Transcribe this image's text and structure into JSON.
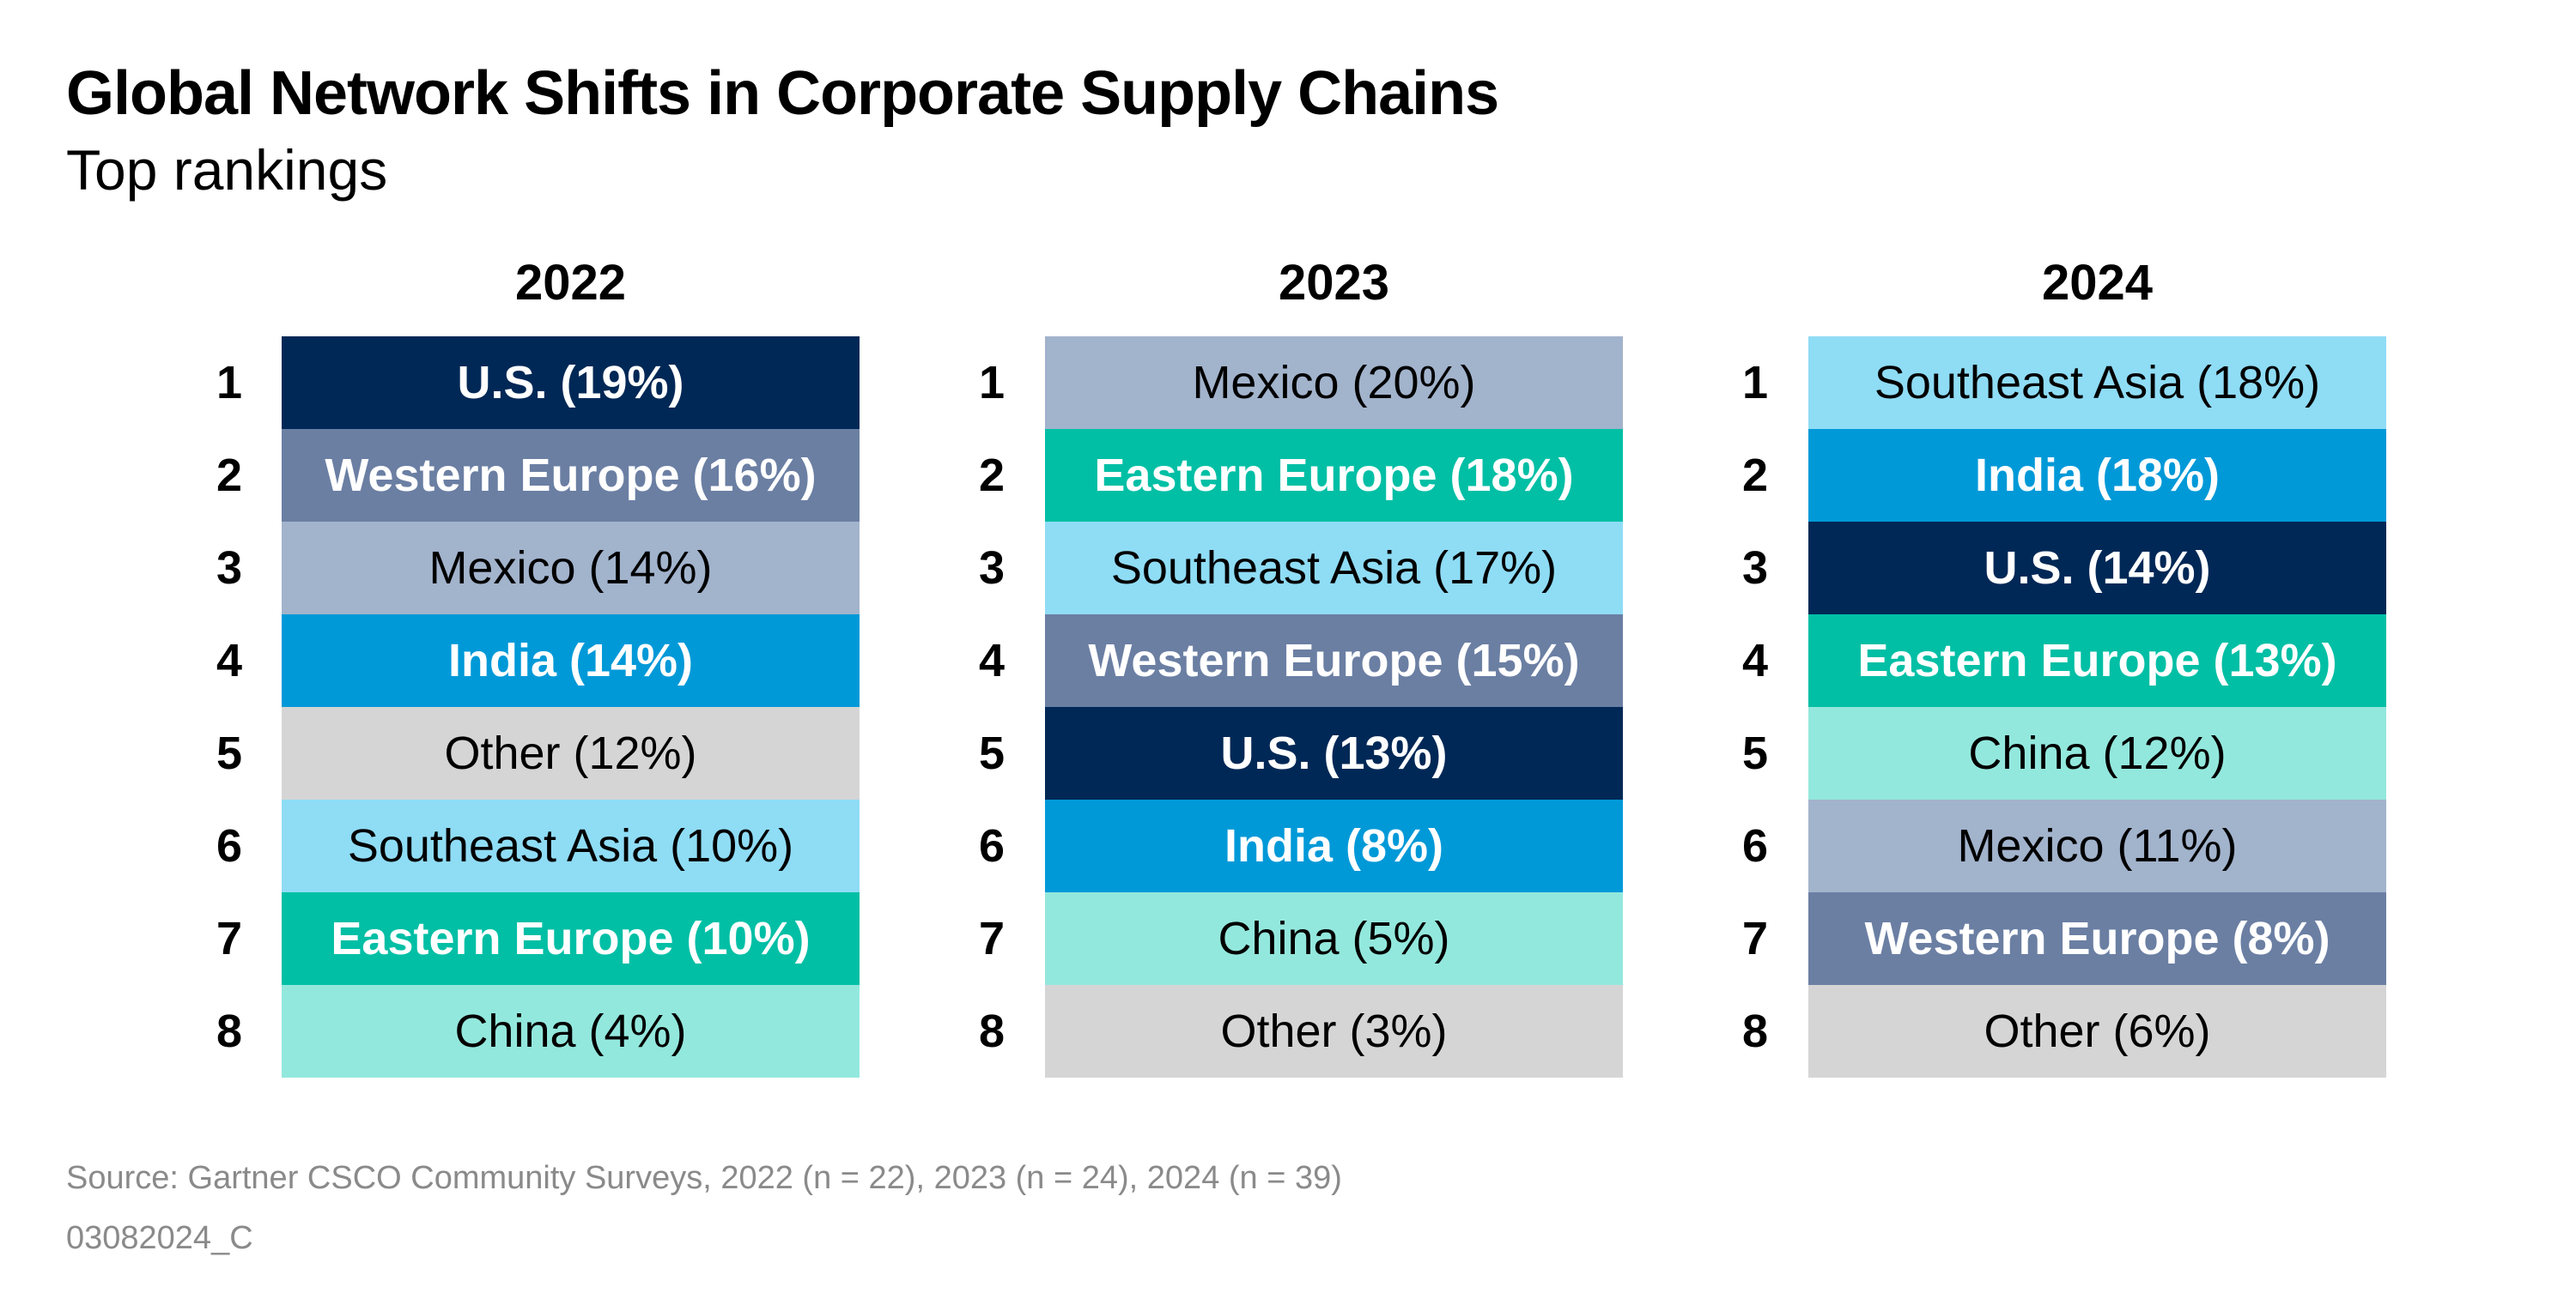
{
  "header": {
    "title": "Global Network Shifts in Corporate Supply Chains",
    "subtitle": "Top rankings"
  },
  "columns": [
    {
      "year": "2022",
      "items": [
        {
          "rank": 1,
          "label": "U.S. (19%)",
          "color": "#002856"
        },
        {
          "rank": 2,
          "label": "Western Europe (16%)",
          "color": "#6b7fa3"
        },
        {
          "rank": 3,
          "label": "Mexico (14%)",
          "color": "#a2b3cc"
        },
        {
          "rank": 4,
          "label": "India (14%)",
          "color": "#0099d8"
        },
        {
          "rank": 5,
          "label": "Other (12%)",
          "color": "#d5d5d5"
        },
        {
          "rank": 6,
          "label": "Southeast Asia (10%)",
          "color": "#8fdcf5"
        },
        {
          "rank": 7,
          "label": "Eastern Europe (10%)",
          "color": "#00bfa5"
        },
        {
          "rank": 8,
          "label": "China (4%)",
          "color": "#93e8dd"
        }
      ]
    },
    {
      "year": "2023",
      "items": [
        {
          "rank": 1,
          "label": "Mexico (20%)",
          "color": "#a2b3cc"
        },
        {
          "rank": 2,
          "label": "Eastern Europe (18%)",
          "color": "#00bfa5"
        },
        {
          "rank": 3,
          "label": "Southeast Asia (17%)",
          "color": "#8fdcf5"
        },
        {
          "rank": 4,
          "label": "Western Europe (15%)",
          "color": "#6b7fa3"
        },
        {
          "rank": 5,
          "label": "U.S. (13%)",
          "color": "#002856"
        },
        {
          "rank": 6,
          "label": "India (8%)",
          "color": "#0099d8"
        },
        {
          "rank": 7,
          "label": "China (5%)",
          "color": "#93e8dd"
        },
        {
          "rank": 8,
          "label": "Other (3%)",
          "color": "#d5d5d5"
        }
      ]
    },
    {
      "year": "2024",
      "items": [
        {
          "rank": 1,
          "label": "Southeast Asia (18%)",
          "color": "#8fdcf5"
        },
        {
          "rank": 2,
          "label": "India (18%)",
          "color": "#0099d8"
        },
        {
          "rank": 3,
          "label": "U.S. (14%)",
          "color": "#002856"
        },
        {
          "rank": 4,
          "label": "Eastern Europe (13%)",
          "color": "#00bfa5"
        },
        {
          "rank": 5,
          "label": "China (12%)",
          "color": "#93e8dd"
        },
        {
          "rank": 6,
          "label": "Mexico (11%)",
          "color": "#a2b3cc"
        },
        {
          "rank": 7,
          "label": "Western Europe (8%)",
          "color": "#6b7fa3"
        },
        {
          "rank": 8,
          "label": "Other (6%)",
          "color": "#d5d5d5"
        }
      ]
    }
  ],
  "footer": {
    "source": "Source: Gartner CSCO Community Surveys, 2022 (n = 22), 2023 (n = 24), 2024 (n = 39)",
    "code": "03082024_C"
  }
}
